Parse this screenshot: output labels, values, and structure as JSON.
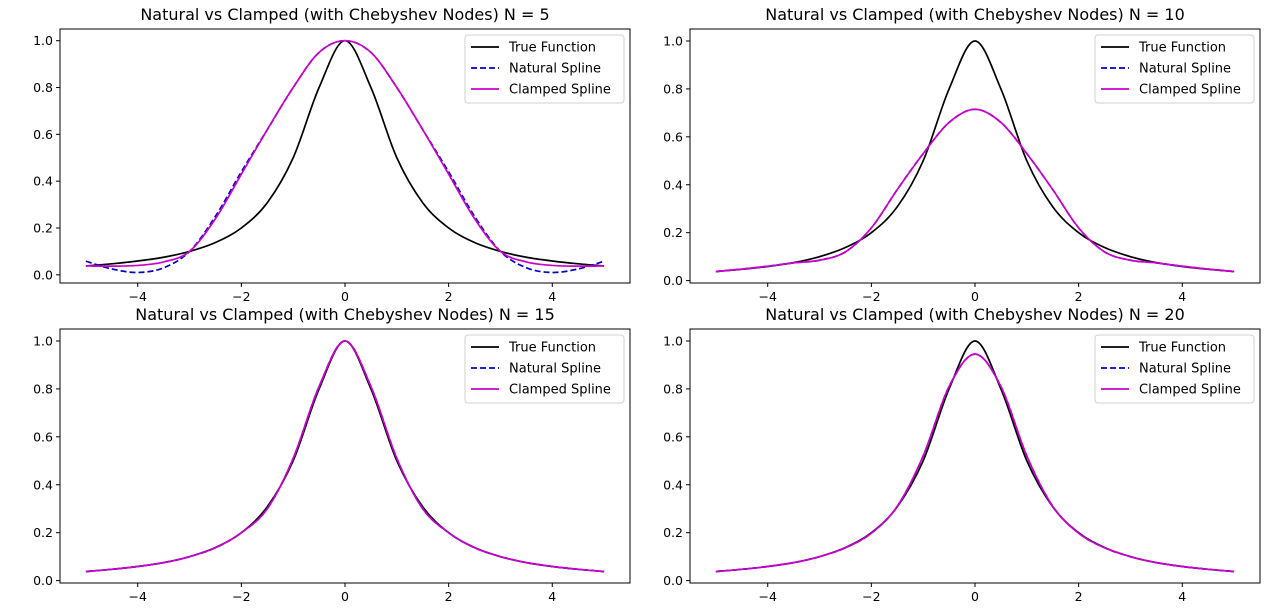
{
  "chart_data": [
    {
      "type": "line",
      "title": "Natural vs Clamped (with Chebyshev Nodes) N = 5",
      "xlim": [
        -5.5,
        5.5
      ],
      "ylim": [
        -0.035,
        1.05
      ],
      "xticks": [
        -4,
        -2,
        0,
        2,
        4
      ],
      "yticks": [
        0.0,
        0.2,
        0.4,
        0.6,
        0.8,
        1.0
      ],
      "grid": false,
      "legend": "upper right",
      "series": [
        {
          "name": "True Function",
          "color": "#000000",
          "dash": "solid",
          "x": [
            -5,
            -4.5,
            -4,
            -3.5,
            -3,
            -2.5,
            -2,
            -1.5,
            -1,
            -0.5,
            0,
            0.5,
            1,
            1.5,
            2,
            2.5,
            3,
            3.5,
            4,
            4.5,
            5
          ],
          "y": [
            0.038,
            0.047,
            0.059,
            0.075,
            0.1,
            0.138,
            0.2,
            0.308,
            0.5,
            0.8,
            1.0,
            0.8,
            0.5,
            0.308,
            0.2,
            0.138,
            0.1,
            0.075,
            0.059,
            0.047,
            0.038
          ]
        },
        {
          "name": "Natural Spline",
          "color": "#0000cc",
          "dash": "dashed",
          "x": [
            -5,
            -4.5,
            -4,
            -3.5,
            -3,
            -2.5,
            -2,
            -1.5,
            -1,
            -0.5,
            0,
            0.5,
            1,
            1.5,
            2,
            2.5,
            3,
            3.5,
            4,
            4.5,
            5
          ],
          "y": [
            0.058,
            0.025,
            0.01,
            0.03,
            0.1,
            0.25,
            0.44,
            0.62,
            0.8,
            0.95,
            1.0,
            0.95,
            0.8,
            0.62,
            0.44,
            0.25,
            0.1,
            0.03,
            0.01,
            0.025,
            0.058
          ]
        },
        {
          "name": "Clamped Spline",
          "color": "#cc00cc",
          "dash": "solid",
          "x": [
            -5,
            -4.5,
            -4,
            -3.5,
            -3,
            -2.5,
            -2,
            -1.5,
            -1,
            -0.5,
            0,
            0.5,
            1,
            1.5,
            2,
            2.5,
            3,
            3.5,
            4,
            4.5,
            5
          ],
          "y": [
            0.038,
            0.037,
            0.04,
            0.055,
            0.1,
            0.24,
            0.43,
            0.62,
            0.8,
            0.95,
            1.0,
            0.95,
            0.8,
            0.62,
            0.43,
            0.24,
            0.1,
            0.055,
            0.04,
            0.037,
            0.038
          ]
        }
      ]
    },
    {
      "type": "line",
      "title": "Natural vs Clamped (with Chebyshev Nodes) N = 10",
      "xlim": [
        -5.5,
        5.5
      ],
      "ylim": [
        -0.01,
        1.05
      ],
      "xticks": [
        -4,
        -2,
        0,
        2,
        4
      ],
      "yticks": [
        0.0,
        0.2,
        0.4,
        0.6,
        0.8,
        1.0
      ],
      "grid": false,
      "legend": "upper right",
      "series": [
        {
          "name": "True Function",
          "color": "#000000",
          "dash": "solid",
          "x": [
            -5,
            -4.5,
            -4,
            -3.5,
            -3,
            -2.5,
            -2,
            -1.5,
            -1,
            -0.5,
            0,
            0.5,
            1,
            1.5,
            2,
            2.5,
            3,
            3.5,
            4,
            4.5,
            5
          ],
          "y": [
            0.038,
            0.047,
            0.059,
            0.075,
            0.1,
            0.138,
            0.2,
            0.308,
            0.5,
            0.8,
            1.0,
            0.8,
            0.5,
            0.308,
            0.2,
            0.138,
            0.1,
            0.075,
            0.059,
            0.047,
            0.038
          ]
        },
        {
          "name": "Natural Spline",
          "color": "#0000cc",
          "dash": "dashed",
          "x": [
            -5,
            -4.5,
            -4,
            -3.5,
            -3,
            -2.5,
            -2,
            -1.5,
            -1,
            -0.5,
            0,
            0.5,
            1,
            1.5,
            2,
            2.5,
            3,
            3.5,
            4,
            4.5,
            5
          ],
          "y": [
            0.038,
            0.048,
            0.06,
            0.074,
            0.085,
            0.12,
            0.22,
            0.38,
            0.53,
            0.66,
            0.715,
            0.66,
            0.53,
            0.38,
            0.22,
            0.12,
            0.085,
            0.074,
            0.06,
            0.048,
            0.038
          ]
        },
        {
          "name": "Clamped Spline",
          "color": "#cc00cc",
          "dash": "solid",
          "x": [
            -5,
            -4.5,
            -4,
            -3.5,
            -3,
            -2.5,
            -2,
            -1.5,
            -1,
            -0.5,
            0,
            0.5,
            1,
            1.5,
            2,
            2.5,
            3,
            3.5,
            4,
            4.5,
            5
          ],
          "y": [
            0.038,
            0.048,
            0.06,
            0.074,
            0.085,
            0.12,
            0.22,
            0.38,
            0.53,
            0.66,
            0.715,
            0.66,
            0.53,
            0.38,
            0.22,
            0.12,
            0.085,
            0.074,
            0.06,
            0.048,
            0.038
          ]
        }
      ]
    },
    {
      "type": "line",
      "title": "Natural vs Clamped (with Chebyshev Nodes) N = 15",
      "xlim": [
        -5.5,
        5.5
      ],
      "ylim": [
        -0.01,
        1.05
      ],
      "xticks": [
        -4,
        -2,
        0,
        2,
        4
      ],
      "yticks": [
        0.0,
        0.2,
        0.4,
        0.6,
        0.8,
        1.0
      ],
      "grid": false,
      "legend": "upper right",
      "series": [
        {
          "name": "True Function",
          "color": "#000000",
          "dash": "solid",
          "x": [
            -5,
            -4.5,
            -4,
            -3.5,
            -3,
            -2.5,
            -2,
            -1.5,
            -1,
            -0.5,
            0,
            0.5,
            1,
            1.5,
            2,
            2.5,
            3,
            3.5,
            4,
            4.5,
            5
          ],
          "y": [
            0.038,
            0.047,
            0.059,
            0.075,
            0.1,
            0.138,
            0.2,
            0.308,
            0.5,
            0.8,
            1.0,
            0.8,
            0.5,
            0.308,
            0.2,
            0.138,
            0.1,
            0.075,
            0.059,
            0.047,
            0.038
          ]
        },
        {
          "name": "Natural Spline",
          "color": "#0000cc",
          "dash": "dashed",
          "x": [
            -5,
            -4.5,
            -4,
            -3.5,
            -3,
            -2.5,
            -2,
            -1.5,
            -1,
            -0.5,
            0,
            0.5,
            1,
            1.5,
            2,
            2.5,
            3,
            3.5,
            4,
            4.5,
            5
          ],
          "y": [
            0.038,
            0.047,
            0.059,
            0.075,
            0.1,
            0.137,
            0.2,
            0.3,
            0.51,
            0.81,
            1.0,
            0.81,
            0.51,
            0.3,
            0.2,
            0.137,
            0.1,
            0.075,
            0.059,
            0.047,
            0.038
          ]
        },
        {
          "name": "Clamped Spline",
          "color": "#cc00cc",
          "dash": "solid",
          "x": [
            -5,
            -4.5,
            -4,
            -3.5,
            -3,
            -2.5,
            -2,
            -1.5,
            -1,
            -0.5,
            0,
            0.5,
            1,
            1.5,
            2,
            2.5,
            3,
            3.5,
            4,
            4.5,
            5
          ],
          "y": [
            0.038,
            0.047,
            0.059,
            0.075,
            0.1,
            0.137,
            0.2,
            0.3,
            0.51,
            0.81,
            1.0,
            0.81,
            0.51,
            0.3,
            0.2,
            0.137,
            0.1,
            0.075,
            0.059,
            0.047,
            0.038
          ]
        }
      ]
    },
    {
      "type": "line",
      "title": "Natural vs Clamped (with Chebyshev Nodes) N = 20",
      "xlim": [
        -5.5,
        5.5
      ],
      "ylim": [
        -0.01,
        1.05
      ],
      "xticks": [
        -4,
        -2,
        0,
        2,
        4
      ],
      "yticks": [
        0.0,
        0.2,
        0.4,
        0.6,
        0.8,
        1.0
      ],
      "grid": false,
      "legend": "upper right",
      "series": [
        {
          "name": "True Function",
          "color": "#000000",
          "dash": "solid",
          "x": [
            -5,
            -4.5,
            -4,
            -3.5,
            -3,
            -2.5,
            -2,
            -1.5,
            -1,
            -0.5,
            0,
            0.5,
            1,
            1.5,
            2,
            2.5,
            3,
            3.5,
            4,
            4.5,
            5
          ],
          "y": [
            0.038,
            0.047,
            0.059,
            0.075,
            0.1,
            0.138,
            0.2,
            0.308,
            0.5,
            0.8,
            1.0,
            0.8,
            0.5,
            0.308,
            0.2,
            0.138,
            0.1,
            0.075,
            0.059,
            0.047,
            0.038
          ]
        },
        {
          "name": "Natural Spline",
          "color": "#0000cc",
          "dash": "dashed",
          "x": [
            -5,
            -4.5,
            -4,
            -3.5,
            -3,
            -2.5,
            -2,
            -1.5,
            -1,
            -0.5,
            0,
            0.5,
            1,
            1.5,
            2,
            2.5,
            3,
            3.5,
            4,
            4.5,
            5
          ],
          "y": [
            0.038,
            0.047,
            0.059,
            0.075,
            0.1,
            0.137,
            0.198,
            0.31,
            0.52,
            0.81,
            0.945,
            0.81,
            0.52,
            0.31,
            0.198,
            0.137,
            0.1,
            0.075,
            0.059,
            0.047,
            0.038
          ]
        },
        {
          "name": "Clamped Spline",
          "color": "#cc00cc",
          "dash": "solid",
          "x": [
            -5,
            -4.5,
            -4,
            -3.5,
            -3,
            -2.5,
            -2,
            -1.5,
            -1,
            -0.5,
            0,
            0.5,
            1,
            1.5,
            2,
            2.5,
            3,
            3.5,
            4,
            4.5,
            5
          ],
          "y": [
            0.038,
            0.047,
            0.059,
            0.075,
            0.1,
            0.137,
            0.198,
            0.31,
            0.52,
            0.81,
            0.945,
            0.81,
            0.52,
            0.31,
            0.198,
            0.137,
            0.1,
            0.075,
            0.059,
            0.047,
            0.038
          ]
        }
      ]
    }
  ]
}
